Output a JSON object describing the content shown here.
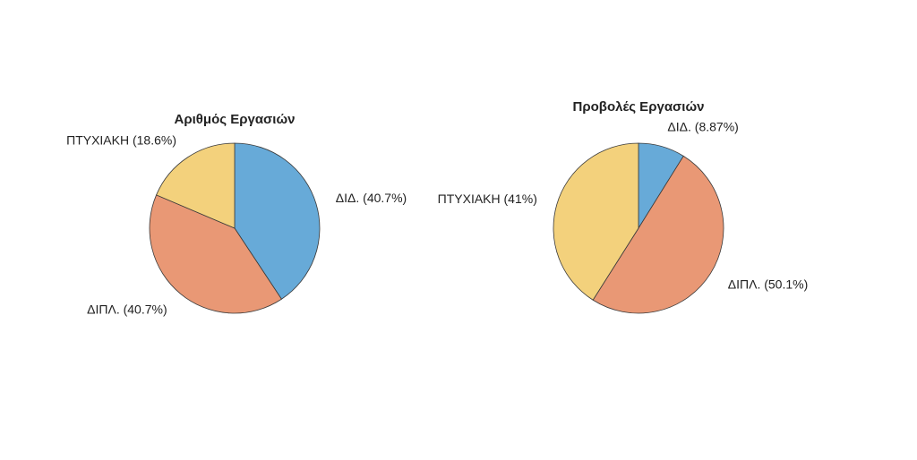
{
  "chart_data": [
    {
      "type": "pie",
      "title": "Αριθμός Εργασιών",
      "slices": [
        {
          "label": "ΔΙΔ. (40.7%)",
          "value": 40.7,
          "color": "#67aad8"
        },
        {
          "label": "ΔΙΠΛ. (40.7%)",
          "value": 40.7,
          "color": "#e99875"
        },
        {
          "label": "ΠΤΥΧΙΑΚΗ (18.6%)",
          "value": 18.6,
          "color": "#f3d17c"
        }
      ]
    },
    {
      "type": "pie",
      "title": "Προβολές Εργασιών",
      "slices": [
        {
          "label": "ΔΙΔ. (8.87%)",
          "value": 8.87,
          "color": "#67aad8"
        },
        {
          "label": "ΔΙΠΛ. (50.1%)",
          "value": 50.1,
          "color": "#e99875"
        },
        {
          "label": "ΠΤΥΧΙΑΚΗ (41%)",
          "value": 41.0,
          "color": "#f3d17c"
        }
      ]
    }
  ]
}
